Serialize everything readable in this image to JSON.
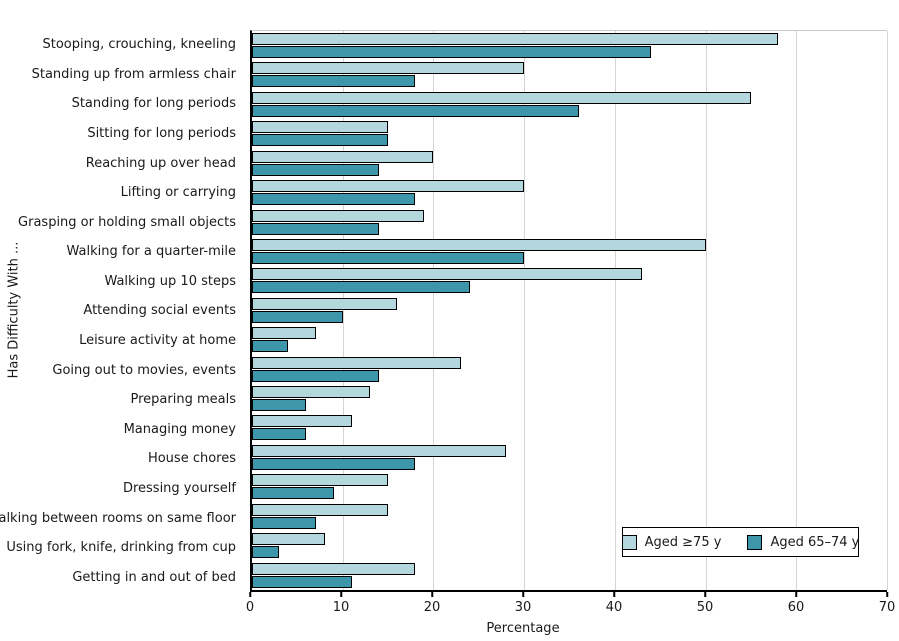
{
  "chart_data": {
    "type": "bar",
    "orientation": "horizontal",
    "title": "",
    "xlabel": "Percentage",
    "ylabel": "Has Difficulty With ...",
    "xlim": [
      0,
      70
    ],
    "xticks": [
      0,
      10,
      20,
      30,
      40,
      50,
      60,
      70
    ],
    "grid": "vertical",
    "legend_position": "bottom-right",
    "categories": [
      "Stooping, crouching, kneeling",
      "Standing up from armless chair",
      "Standing for long periods",
      "Sitting for long periods",
      "Reaching up over head",
      "Lifting or carrying",
      "Grasping or holding small objects",
      "Walking for a quarter-mile",
      "Walking up 10 steps",
      "Attending social events",
      "Leisure activity at home",
      "Going out to movies, events",
      "Preparing meals",
      "Managing money",
      "House chores",
      "Dressing yourself",
      "Walking between rooms on same floor",
      "Using fork, knife, drinking from cup",
      "Getting in and out of bed"
    ],
    "series": [
      {
        "name": "Aged ≥75 y",
        "color": "#b4d7de",
        "values": [
          58,
          30,
          55,
          15,
          20,
          30,
          19,
          50,
          43,
          16,
          7,
          23,
          13,
          11,
          28,
          15,
          15,
          8,
          18
        ]
      },
      {
        "name": "Aged 65–74 y",
        "color": "#3e96ab",
        "values": [
          44,
          18,
          36,
          15,
          14,
          18,
          14,
          30,
          24,
          10,
          4,
          14,
          6,
          6,
          18,
          9,
          7,
          3,
          11
        ]
      }
    ],
    "colors": {
      "gridline": "#d4d4d4",
      "axis": "#000000",
      "bar_border": "#000000",
      "text": "#1a1a1a",
      "background": "#ffffff"
    }
  }
}
